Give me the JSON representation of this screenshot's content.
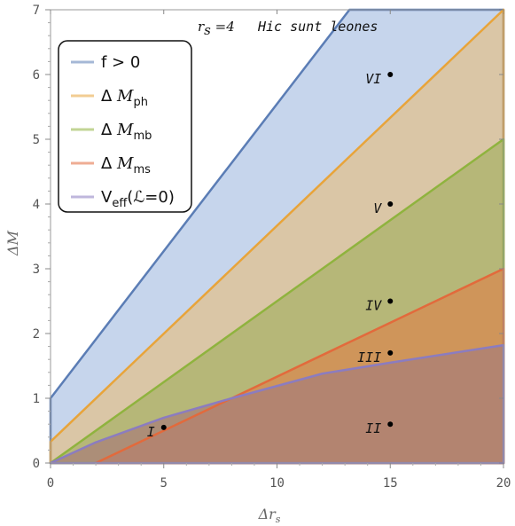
{
  "chart_data": {
    "type": "area",
    "title_rs": "r",
    "title_rs_sub": "s",
    "title_rs_value": " =4",
    "title_text": "Hic sunt leones",
    "xlabel": "Δr",
    "xlabel_sub": "s",
    "ylabel": "ΔM",
    "xlim": [
      0,
      20
    ],
    "ylim": [
      0,
      7
    ],
    "xticks": [
      0,
      5,
      10,
      15,
      20
    ],
    "yticks": [
      0,
      1,
      2,
      3,
      4,
      5,
      6,
      7
    ],
    "series": [
      {
        "name": "f > 0",
        "legend": {
          "text": "f > 0"
        },
        "color": "#5b7db5",
        "fill": "#c6d5ec",
        "boundary": [
          [
            0,
            0
          ],
          [
            0,
            1
          ],
          [
            13.2,
            7
          ],
          [
            20,
            7
          ],
          [
            20,
            0
          ]
        ]
      },
      {
        "name": "ΔM_ph",
        "legend": {
          "prefix": "Δ",
          "italic": "M",
          "sub": "ph"
        },
        "color": "#e8a43a",
        "fill": "#e2c08b",
        "boundary": [
          [
            0,
            0
          ],
          [
            0,
            0.33
          ],
          [
            20,
            7
          ],
          [
            20,
            0
          ]
        ]
      },
      {
        "name": "ΔM_mb",
        "legend": {
          "prefix": "Δ",
          "italic": "M",
          "sub": "mb"
        },
        "color": "#8fb33e",
        "fill": "#a8b266",
        "boundary": [
          [
            0,
            0
          ],
          [
            20,
            5
          ],
          [
            20,
            0
          ]
        ]
      },
      {
        "name": "ΔM_ms",
        "legend": {
          "prefix": "Δ",
          "italic": "M",
          "sub": "ms"
        },
        "color": "#e26a3c",
        "fill": "#d8884f",
        "boundary": [
          [
            2,
            0
          ],
          [
            20,
            3
          ],
          [
            20,
            0
          ]
        ]
      },
      {
        "name": "V_eff(L=0)",
        "legend": {
          "prefix": "V",
          "sub": "eff",
          "suffix": "(ℒ=0)"
        },
        "color": "#8b7cc0",
        "fill": "#a77e78",
        "boundary": [
          [
            0,
            0
          ],
          [
            2,
            0.32
          ],
          [
            5,
            0.7
          ],
          [
            8,
            1.0
          ],
          [
            12,
            1.38
          ],
          [
            15,
            1.55
          ],
          [
            20,
            1.82
          ],
          [
            20,
            0
          ]
        ]
      }
    ],
    "annotations": [
      {
        "label": "VI",
        "x": 15,
        "y": 6.0
      },
      {
        "label": "V",
        "x": 15,
        "y": 4.0
      },
      {
        "label": "IV",
        "x": 15,
        "y": 2.5
      },
      {
        "label": "III",
        "x": 15,
        "y": 1.7
      },
      {
        "label": "II",
        "x": 15,
        "y": 0.6
      },
      {
        "label": "I",
        "x": 5,
        "y": 0.55
      }
    ],
    "legend_placement": "top-left",
    "grid": false
  }
}
